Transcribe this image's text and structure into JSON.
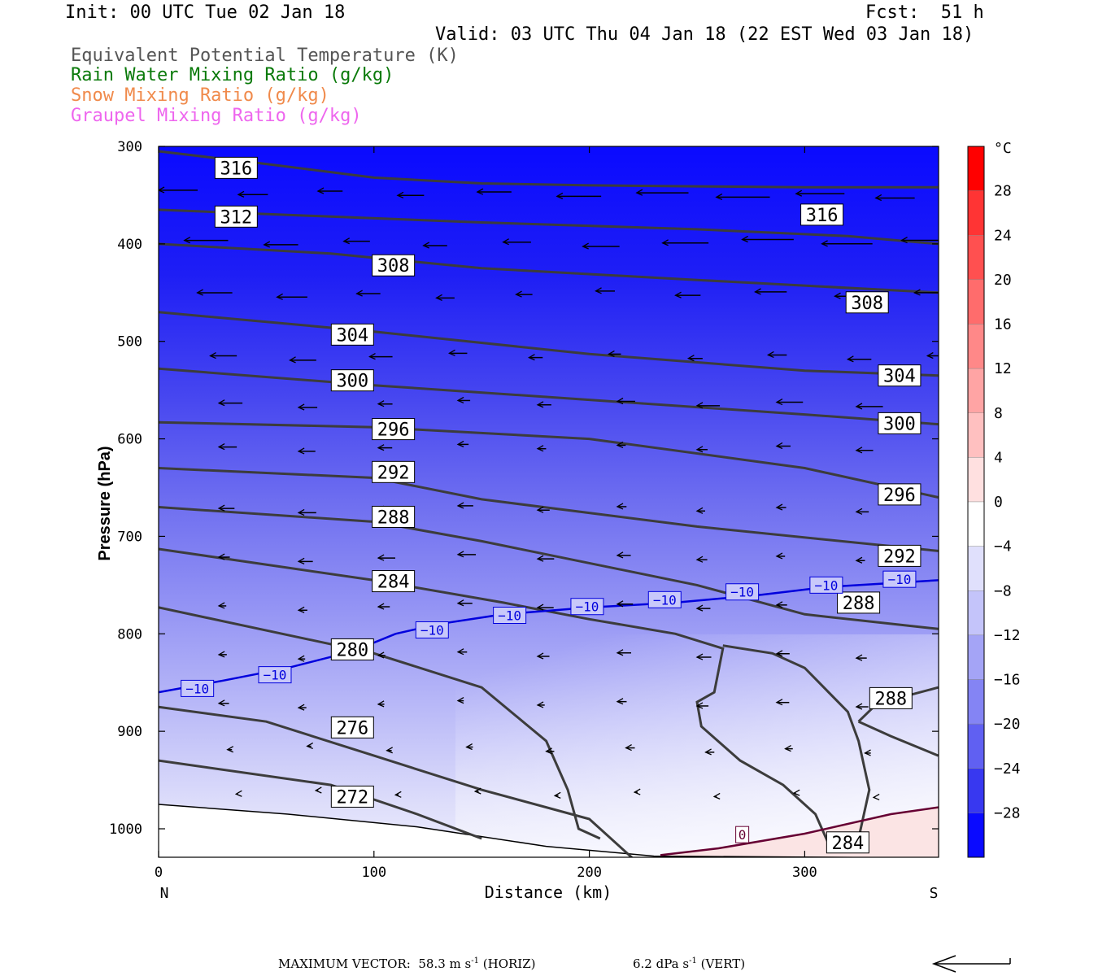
{
  "header": {
    "init": "Init: 00 UTC Tue 02 Jan 18",
    "fcst": "Fcst:  51 h",
    "valid": "Valid: 03 UTC Thu 04 Jan 18 (22 EST Wed 03 Jan 18)",
    "legend": [
      {
        "label": "Equivalent Potential Temperature (K)",
        "color": "#555555"
      },
      {
        "label": "Rain Water Mixing Ratio (g/kg)",
        "color": "#0a7a0a"
      },
      {
        "label": "Snow Mixing Ratio (g/kg)",
        "color": "#f08a4b"
      },
      {
        "label": "Graupel Mixing Ratio (g/kg)",
        "color": "#ee66ee"
      }
    ]
  },
  "footer": {
    "max_vector_label": "MAXIMUM VECTOR:",
    "horiz": "58.3 m s",
    "horiz_unit": "(HORIZ)",
    "vert": "6.2 dPa s",
    "vert_unit": "(VERT)",
    "exponent": "-1"
  },
  "chart_data": {
    "type": "contour",
    "xlabel": "Distance (km)",
    "ylabel": "Pressure (hPa)",
    "xlim": [
      0,
      362
    ],
    "ylim": [
      1030,
      300
    ],
    "x_ticks": [
      0,
      100,
      200,
      300
    ],
    "y_ticks": [
      300,
      400,
      500,
      600,
      700,
      800,
      900,
      1000
    ],
    "x_end_labels": {
      "left": "N",
      "right": "S"
    },
    "colorbar": {
      "unit": "°C",
      "labels": [
        28,
        24,
        20,
        16,
        12,
        8,
        4,
        0,
        -4,
        -8,
        -12,
        -16,
        -20,
        -24,
        -28
      ]
    },
    "theta_e": [
      {
        "value": 316,
        "pts": [
          [
            0,
            305
          ],
          [
            50,
            318
          ],
          [
            100,
            332
          ],
          [
            150,
            338
          ],
          [
            200,
            340
          ],
          [
            250,
            341
          ],
          [
            300,
            342
          ],
          [
            362,
            342
          ]
        ]
      },
      {
        "value": 316,
        "pts": [
          [
            0,
            365
          ],
          [
            80,
            372
          ],
          [
            150,
            378
          ],
          [
            250,
            385
          ],
          [
            320,
            392
          ],
          [
            362,
            400
          ]
        ]
      },
      {
        "value": 312,
        "pts": [
          [
            0,
            400
          ],
          [
            80,
            410
          ],
          [
            150,
            425
          ],
          [
            250,
            437
          ],
          [
            362,
            450
          ]
        ]
      },
      {
        "value": 308,
        "pts": [
          [
            0,
            470
          ],
          [
            100,
            490
          ],
          [
            200,
            513
          ],
          [
            300,
            530
          ],
          [
            362,
            535
          ]
        ]
      },
      {
        "value": 304,
        "pts": [
          [
            0,
            528
          ],
          [
            100,
            545
          ],
          [
            200,
            560
          ],
          [
            300,
            575
          ],
          [
            362,
            585
          ]
        ]
      },
      {
        "value": 300,
        "pts": [
          [
            0,
            583
          ],
          [
            100,
            588
          ],
          [
            200,
            600
          ],
          [
            300,
            630
          ],
          [
            362,
            660
          ]
        ]
      },
      {
        "value": 296,
        "pts": [
          [
            0,
            630
          ],
          [
            100,
            640
          ],
          [
            150,
            662
          ],
          [
            250,
            690
          ],
          [
            362,
            715
          ]
        ]
      },
      {
        "value": 292,
        "pts": [
          [
            0,
            670
          ],
          [
            100,
            685
          ],
          [
            150,
            705
          ],
          [
            250,
            750
          ],
          [
            300,
            780
          ],
          [
            362,
            795
          ]
        ]
      },
      {
        "value": 288,
        "pts": [
          [
            0,
            713
          ],
          [
            100,
            745
          ],
          [
            160,
            768
          ],
          [
            200,
            785
          ],
          [
            240,
            800
          ],
          [
            262,
            815
          ],
          [
            258,
            860
          ],
          [
            250,
            870
          ],
          [
            252,
            895
          ],
          [
            270,
            930
          ],
          [
            290,
            955
          ],
          [
            305,
            985
          ],
          [
            312,
            1020
          ]
        ]
      },
      {
        "value": 284,
        "pts": [
          [
            0,
            773
          ],
          [
            100,
            820
          ],
          [
            150,
            855
          ],
          [
            180,
            910
          ],
          [
            190,
            960
          ],
          [
            195,
            1000
          ],
          [
            205,
            1010
          ]
        ]
      },
      {
        "value": 280,
        "pts": [
          [
            0,
            875
          ],
          [
            50,
            890
          ],
          [
            100,
            925
          ],
          [
            150,
            960
          ],
          [
            200,
            990
          ],
          [
            220,
            1030
          ]
        ]
      },
      {
        "value": 276,
        "pts": [
          [
            0,
            930
          ],
          [
            80,
            955
          ],
          [
            120,
            985
          ],
          [
            150,
            1010
          ]
        ]
      },
      {
        "value": 288,
        "pts": [
          [
            325,
            890
          ],
          [
            332,
            875
          ],
          [
            345,
            865
          ],
          [
            362,
            855
          ]
        ]
      },
      {
        "value": 284,
        "pts": [
          [
            325,
            890
          ],
          [
            340,
            905
          ],
          [
            362,
            925
          ]
        ]
      },
      {
        "value": 284,
        "pts": [
          [
            262,
            812
          ],
          [
            285,
            820
          ],
          [
            300,
            835
          ],
          [
            320,
            880
          ],
          [
            325,
            910
          ],
          [
            330,
            960
          ],
          [
            325,
            1010
          ]
        ]
      }
    ],
    "theta_e_labels": [
      {
        "text": "316",
        "x": 36,
        "p": 322
      },
      {
        "text": "312",
        "x": 36,
        "p": 372
      },
      {
        "text": "316",
        "x": 308,
        "p": 370
      },
      {
        "text": "308",
        "x": 109,
        "p": 422
      },
      {
        "text": "308",
        "x": 329,
        "p": 460
      },
      {
        "text": "304",
        "x": 90,
        "p": 493
      },
      {
        "text": "300",
        "x": 90,
        "p": 540
      },
      {
        "text": "304",
        "x": 344,
        "p": 535
      },
      {
        "text": "300",
        "x": 344,
        "p": 584
      },
      {
        "text": "296",
        "x": 109,
        "p": 590
      },
      {
        "text": "292",
        "x": 109,
        "p": 634
      },
      {
        "text": "296",
        "x": 344,
        "p": 657
      },
      {
        "text": "288",
        "x": 109,
        "p": 680
      },
      {
        "text": "292",
        "x": 344,
        "p": 720
      },
      {
        "text": "284",
        "x": 109,
        "p": 746
      },
      {
        "text": "288",
        "x": 325,
        "p": 768
      },
      {
        "text": "280",
        "x": 90,
        "p": 816
      },
      {
        "text": "288",
        "x": 340,
        "p": 866
      },
      {
        "text": "276",
        "x": 90,
        "p": 896
      },
      {
        "text": "272",
        "x": 90,
        "p": 967
      },
      {
        "text": "284",
        "x": 320,
        "p": 1014
      }
    ],
    "isotherms": [
      {
        "value": -10,
        "color": "#0000dd",
        "pts": [
          [
            0,
            860
          ],
          [
            30,
            848
          ],
          [
            60,
            835
          ],
          [
            90,
            818
          ],
          [
            110,
            800
          ],
          [
            130,
            790
          ],
          [
            160,
            780
          ],
          [
            200,
            773
          ],
          [
            240,
            768
          ],
          [
            280,
            760
          ],
          [
            310,
            752
          ],
          [
            362,
            745
          ]
        ]
      },
      {
        "value": 0,
        "color": "#660033",
        "pts": [
          [
            233,
            1027
          ],
          [
            260,
            1020
          ],
          [
            300,
            1005
          ],
          [
            340,
            985
          ],
          [
            362,
            978
          ]
        ]
      }
    ],
    "isotherm_labels": [
      {
        "text": "−10",
        "x": 18,
        "p": 856
      },
      {
        "text": "−10",
        "x": 54,
        "p": 842
      },
      {
        "text": "−10",
        "x": 127,
        "p": 796
      },
      {
        "text": "−10",
        "x": 163,
        "p": 781
      },
      {
        "text": "−10",
        "x": 199,
        "p": 772
      },
      {
        "text": "−10",
        "x": 235,
        "p": 765
      },
      {
        "text": "−10",
        "x": 271,
        "p": 757
      },
      {
        "text": "−10",
        "x": 310,
        "p": 750
      },
      {
        "text": "−10",
        "x": 344,
        "p": 744
      },
      {
        "text": "0",
        "x": 271,
        "p": 1006
      }
    ],
    "ground": [
      [
        0,
        975
      ],
      [
        60,
        985
      ],
      [
        120,
        998
      ],
      [
        180,
        1018
      ],
      [
        230,
        1028
      ],
      [
        362,
        1030
      ]
    ]
  }
}
